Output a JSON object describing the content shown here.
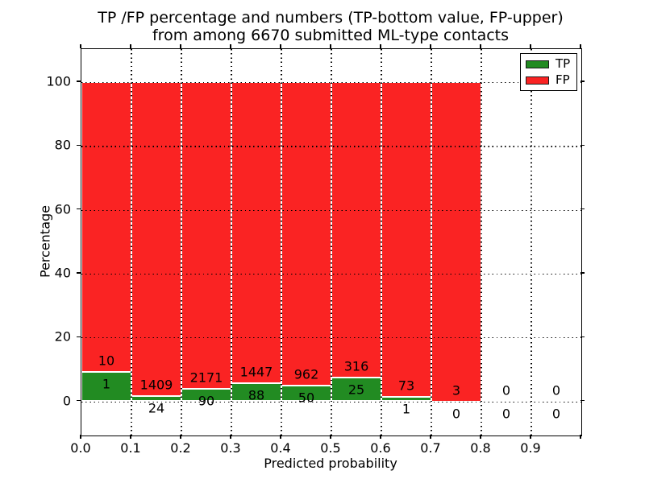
{
  "title": {
    "line1": "TP /FP percentage and numbers (TP-bottom value, FP-upper)",
    "line2": "from among 6670 submitted ML-type contacts"
  },
  "axes": {
    "xlabel": "Predicted probability",
    "ylabel": "Percentage",
    "x_tick_labels": [
      "0.0",
      "0.1",
      "0.2",
      "0.3",
      "0.4",
      "0.5",
      "0.6",
      "0.7",
      "0.8",
      "0.9"
    ],
    "y_tick_labels": [
      "0",
      "20",
      "40",
      "60",
      "80",
      "100"
    ]
  },
  "legend": {
    "position": "upper right",
    "entries": [
      {
        "label": "TP",
        "color": "#228B22"
      },
      {
        "label": "FP",
        "color": "#FA2323"
      }
    ]
  },
  "colors": {
    "tp_bar": "#228B22",
    "fp_bar": "#FA2323",
    "grid": "#000000",
    "frame": "#000000",
    "background": "#FFFFFF",
    "text": "#000000"
  },
  "chart_data": {
    "type": "bar",
    "stacked": true,
    "normalized_to_percent": 100,
    "title": "TP /FP percentage and numbers (TP-bottom value, FP-upper) from among 6670 submitted ML-type contacts",
    "xlabel": "Predicted probability",
    "ylabel": "Percentage",
    "total_contacts": 6670,
    "bin_width": 0.1,
    "bin_starts": [
      0.0,
      0.1,
      0.2,
      0.3,
      0.4,
      0.5,
      0.6,
      0.7,
      0.8,
      0.9
    ],
    "categories": [
      "0.0-0.1",
      "0.1-0.2",
      "0.2-0.3",
      "0.3-0.4",
      "0.4-0.5",
      "0.5-0.6",
      "0.6-0.7",
      "0.7-0.8",
      "0.8-0.9",
      "0.9-1.0"
    ],
    "series": [
      {
        "name": "TP",
        "counts": [
          1,
          24,
          90,
          88,
          50,
          25,
          1,
          0,
          0,
          0
        ]
      },
      {
        "name": "FP",
        "counts": [
          10,
          1409,
          2171,
          1447,
          962,
          316,
          73,
          3,
          0,
          0
        ]
      }
    ],
    "yticks": [
      0,
      20,
      40,
      60,
      80,
      100
    ],
    "xticks": [
      0.0,
      0.1,
      0.2,
      0.3,
      0.4,
      0.5,
      0.6,
      0.7,
      0.8,
      0.9
    ],
    "xlim": [
      0.0,
      1.0
    ],
    "grid": true,
    "grid_style": "dotted",
    "legend_position": "upper right"
  }
}
